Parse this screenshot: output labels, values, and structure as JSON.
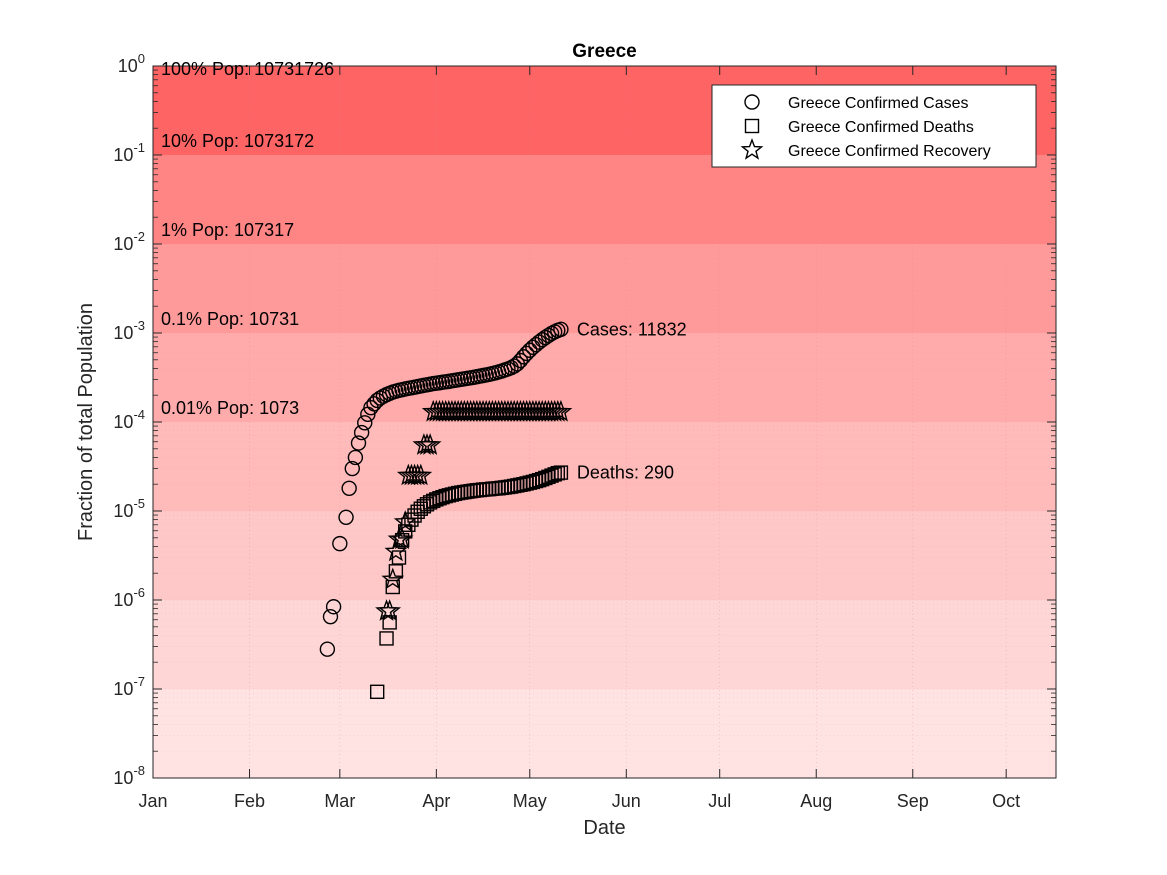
{
  "chart_data": {
    "type": "scatter",
    "title": "Greece",
    "xlabel": "Date",
    "ylabel": "Fraction of total Population",
    "y_scale": "log",
    "ylim": [
      1e-08,
      1
    ],
    "xlim": [
      "2020-01-01",
      "2020-10-17"
    ],
    "grid": true,
    "legend_position": "top-right",
    "population": 10731726,
    "x_ticks": [
      {
        "date": "2020-01-01",
        "label": "Jan"
      },
      {
        "date": "2020-02-01",
        "label": "Feb"
      },
      {
        "date": "2020-03-01",
        "label": "Mar"
      },
      {
        "date": "2020-04-01",
        "label": "Apr"
      },
      {
        "date": "2020-05-01",
        "label": "May"
      },
      {
        "date": "2020-06-01",
        "label": "Jun"
      },
      {
        "date": "2020-07-01",
        "label": "Jul"
      },
      {
        "date": "2020-08-01",
        "label": "Aug"
      },
      {
        "date": "2020-09-01",
        "label": "Sep"
      },
      {
        "date": "2020-10-01",
        "label": "Oct"
      }
    ],
    "y_ticks": [
      {
        "value": 1e-08,
        "base": "10",
        "exp": "-8"
      },
      {
        "value": 1e-07,
        "base": "10",
        "exp": "-7"
      },
      {
        "value": 1e-06,
        "base": "10",
        "exp": "-6"
      },
      {
        "value": 1e-05,
        "base": "10",
        "exp": "-5"
      },
      {
        "value": 0.0001,
        "base": "10",
        "exp": "-4"
      },
      {
        "value": 0.001,
        "base": "10",
        "exp": "-3"
      },
      {
        "value": 0.01,
        "base": "10",
        "exp": "-2"
      },
      {
        "value": 0.1,
        "base": "10",
        "exp": "-1"
      },
      {
        "value": 1,
        "base": "10",
        "exp": "0"
      }
    ],
    "bands": [
      {
        "from": 1e-08,
        "to": 1e-07,
        "color": "#ffe3e3"
      },
      {
        "from": 1e-07,
        "to": 1e-06,
        "color": "#ffd6d6"
      },
      {
        "from": 1e-06,
        "to": 1e-05,
        "color": "#ffc8c8"
      },
      {
        "from": 1e-05,
        "to": 0.0001,
        "color": "#ffbaba"
      },
      {
        "from": 0.0001,
        "to": 0.001,
        "color": "#ffabab"
      },
      {
        "from": 0.001,
        "to": 0.01,
        "color": "#ff9a9a"
      },
      {
        "from": 0.01,
        "to": 0.1,
        "color": "#ff8585"
      },
      {
        "from": 0.1,
        "to": 1,
        "color": "#ff6464"
      }
    ],
    "band_labels": [
      {
        "value": 1,
        "text": "100% Pop: 10731726"
      },
      {
        "value": 0.1,
        "text": "10% Pop: 1073172"
      },
      {
        "value": 0.01,
        "text": "1% Pop: 107317"
      },
      {
        "value": 0.001,
        "text": "0.1% Pop: 10731"
      },
      {
        "value": 0.0001,
        "text": "0.01% Pop: 1073"
      }
    ],
    "series": [
      {
        "name": "Greece Confirmed Cases",
        "marker": "circle",
        "end_label": "Cases: 11832",
        "points": [
          [
            "2020-02-26",
            2.8e-07
          ],
          [
            "2020-02-27",
            6.5e-07
          ],
          [
            "2020-02-28",
            8.4e-07
          ],
          [
            "2020-03-01",
            4.3e-06
          ],
          [
            "2020-03-03",
            8.5e-06
          ],
          [
            "2020-03-04",
            1.8e-05
          ],
          [
            "2020-03-05",
            3e-05
          ],
          [
            "2020-03-06",
            4e-05
          ],
          [
            "2020-03-07",
            5.8e-05
          ],
          [
            "2020-03-08",
            7.6e-05
          ],
          [
            "2020-03-09",
            9.8e-05
          ],
          [
            "2020-03-10",
            0.000122
          ],
          [
            "2020-03-11",
            0.000145
          ],
          [
            "2020-03-12",
            0.00016
          ],
          [
            "2020-03-13",
            0.000175
          ],
          [
            "2020-03-14",
            0.000186
          ],
          [
            "2020-03-15",
            0.000195
          ],
          [
            "2020-03-16",
            0.000203
          ],
          [
            "2020-03-17",
            0.00021
          ],
          [
            "2020-03-18",
            0.000217
          ],
          [
            "2020-03-19",
            0.000222
          ],
          [
            "2020-03-20",
            0.000227
          ],
          [
            "2020-03-21",
            0.000231
          ],
          [
            "2020-03-22",
            0.000235
          ],
          [
            "2020-03-23",
            0.000239
          ],
          [
            "2020-03-24",
            0.000242
          ],
          [
            "2020-03-25",
            0.000246
          ],
          [
            "2020-03-26",
            0.00025
          ],
          [
            "2020-03-27",
            0.000254
          ],
          [
            "2020-03-28",
            0.000258
          ],
          [
            "2020-03-29",
            0.000262
          ],
          [
            "2020-03-30",
            0.000266
          ],
          [
            "2020-03-31",
            0.00027
          ],
          [
            "2020-04-01",
            0.000273
          ],
          [
            "2020-04-02",
            0.000276
          ],
          [
            "2020-04-03",
            0.00028
          ],
          [
            "2020-04-04",
            0.000283
          ],
          [
            "2020-04-05",
            0.000286
          ],
          [
            "2020-04-06",
            0.00029
          ],
          [
            "2020-04-07",
            0.000294
          ],
          [
            "2020-04-08",
            0.000298
          ],
          [
            "2020-04-09",
            0.000302
          ],
          [
            "2020-04-10",
            0.000306
          ],
          [
            "2020-04-11",
            0.00031
          ],
          [
            "2020-04-12",
            0.000314
          ],
          [
            "2020-04-13",
            0.000318
          ],
          [
            "2020-04-14",
            0.000323
          ],
          [
            "2020-04-15",
            0.000328
          ],
          [
            "2020-04-16",
            0.000333
          ],
          [
            "2020-04-17",
            0.000338
          ],
          [
            "2020-04-18",
            0.000343
          ],
          [
            "2020-04-19",
            0.00035
          ],
          [
            "2020-04-20",
            0.000357
          ],
          [
            "2020-04-21",
            0.000365
          ],
          [
            "2020-04-22",
            0.000374
          ],
          [
            "2020-04-23",
            0.000384
          ],
          [
            "2020-04-24",
            0.000395
          ],
          [
            "2020-04-25",
            0.000408
          ],
          [
            "2020-04-26",
            0.000425
          ],
          [
            "2020-04-27",
            0.00045
          ],
          [
            "2020-04-28",
            0.00049
          ],
          [
            "2020-04-29",
            0.00054
          ],
          [
            "2020-04-30",
            0.00059
          ],
          [
            "2020-05-01",
            0.00064
          ],
          [
            "2020-05-02",
            0.00069
          ],
          [
            "2020-05-03",
            0.00074
          ],
          [
            "2020-05-04",
            0.00079
          ],
          [
            "2020-05-05",
            0.00084
          ],
          [
            "2020-05-06",
            0.00089
          ],
          [
            "2020-05-07",
            0.00094
          ],
          [
            "2020-05-08",
            0.00099
          ],
          [
            "2020-05-09",
            0.00103
          ],
          [
            "2020-05-10",
            0.00107
          ],
          [
            "2020-05-11",
            0.0011
          ]
        ]
      },
      {
        "name": "Greece Confirmed Deaths",
        "marker": "square",
        "end_label": "Deaths: 290",
        "points": [
          [
            "2020-03-13",
            9.3e-08
          ],
          [
            "2020-03-16",
            3.7e-07
          ],
          [
            "2020-03-17",
            5.6e-07
          ],
          [
            "2020-03-18",
            1.4e-06
          ],
          [
            "2020-03-19",
            2.1e-06
          ],
          [
            "2020-03-20",
            3e-06
          ],
          [
            "2020-03-21",
            4.7e-06
          ],
          [
            "2020-03-22",
            5.9e-06
          ],
          [
            "2020-03-23",
            7e-06
          ],
          [
            "2020-03-24",
            8e-06
          ],
          [
            "2020-03-25",
            8.9e-06
          ],
          [
            "2020-03-26",
            9.8e-06
          ],
          [
            "2020-03-27",
            1.06e-05
          ],
          [
            "2020-03-28",
            1.13e-05
          ],
          [
            "2020-03-29",
            1.19e-05
          ],
          [
            "2020-03-30",
            1.25e-05
          ],
          [
            "2020-03-31",
            1.3e-05
          ],
          [
            "2020-04-01",
            1.35e-05
          ],
          [
            "2020-04-02",
            1.39e-05
          ],
          [
            "2020-04-03",
            1.43e-05
          ],
          [
            "2020-04-04",
            1.47e-05
          ],
          [
            "2020-04-05",
            1.5e-05
          ],
          [
            "2020-04-06",
            1.53e-05
          ],
          [
            "2020-04-07",
            1.56e-05
          ],
          [
            "2020-04-08",
            1.59e-05
          ],
          [
            "2020-04-09",
            1.61e-05
          ],
          [
            "2020-04-10",
            1.63e-05
          ],
          [
            "2020-04-11",
            1.65e-05
          ],
          [
            "2020-04-12",
            1.67e-05
          ],
          [
            "2020-04-13",
            1.69e-05
          ],
          [
            "2020-04-14",
            1.71e-05
          ],
          [
            "2020-04-15",
            1.72e-05
          ],
          [
            "2020-04-16",
            1.74e-05
          ],
          [
            "2020-04-17",
            1.75e-05
          ],
          [
            "2020-04-18",
            1.76e-05
          ],
          [
            "2020-04-19",
            1.78e-05
          ],
          [
            "2020-04-20",
            1.79e-05
          ],
          [
            "2020-04-21",
            1.8e-05
          ],
          [
            "2020-04-22",
            1.82e-05
          ],
          [
            "2020-04-23",
            1.84e-05
          ],
          [
            "2020-04-24",
            1.86e-05
          ],
          [
            "2020-04-25",
            1.88e-05
          ],
          [
            "2020-04-26",
            1.91e-05
          ],
          [
            "2020-04-27",
            1.94e-05
          ],
          [
            "2020-04-28",
            1.97e-05
          ],
          [
            "2020-04-29",
            2e-05
          ],
          [
            "2020-04-30",
            2.04e-05
          ],
          [
            "2020-05-01",
            2.08e-05
          ],
          [
            "2020-05-02",
            2.12e-05
          ],
          [
            "2020-05-03",
            2.17e-05
          ],
          [
            "2020-05-04",
            2.22e-05
          ],
          [
            "2020-05-05",
            2.28e-05
          ],
          [
            "2020-05-06",
            2.35e-05
          ],
          [
            "2020-05-07",
            2.42e-05
          ],
          [
            "2020-05-08",
            2.5e-05
          ],
          [
            "2020-05-09",
            2.58e-05
          ],
          [
            "2020-05-10",
            2.66e-05
          ],
          [
            "2020-05-11",
            2.7e-05
          ]
        ]
      },
      {
        "name": "Greece Confirmed Recovery",
        "marker": "star",
        "points": [
          [
            "2020-03-16",
            7.5e-07
          ],
          [
            "2020-03-17",
            7.5e-07
          ],
          [
            "2020-03-18",
            1.7e-06
          ],
          [
            "2020-03-19",
            3.5e-06
          ],
          [
            "2020-03-20",
            4.8e-06
          ],
          [
            "2020-03-21",
            4.8e-06
          ],
          [
            "2020-03-22",
            7.5e-06
          ],
          [
            "2020-03-23",
            2.5e-05
          ],
          [
            "2020-03-24",
            2.5e-05
          ],
          [
            "2020-03-25",
            2.5e-05
          ],
          [
            "2020-03-26",
            2.5e-05
          ],
          [
            "2020-03-27",
            2.5e-05
          ],
          [
            "2020-03-28",
            5.5e-05
          ],
          [
            "2020-03-29",
            5.5e-05
          ],
          [
            "2020-03-30",
            5.5e-05
          ],
          [
            "2020-03-31",
            0.00013
          ],
          [
            "2020-04-01",
            0.00013
          ],
          [
            "2020-04-02",
            0.00013
          ],
          [
            "2020-04-03",
            0.00013
          ],
          [
            "2020-04-04",
            0.00013
          ],
          [
            "2020-04-05",
            0.00013
          ],
          [
            "2020-04-06",
            0.00013
          ],
          [
            "2020-04-07",
            0.00013
          ],
          [
            "2020-04-08",
            0.00013
          ],
          [
            "2020-04-09",
            0.00013
          ],
          [
            "2020-04-10",
            0.00013
          ],
          [
            "2020-04-11",
            0.00013
          ],
          [
            "2020-04-12",
            0.00013
          ],
          [
            "2020-04-13",
            0.00013
          ],
          [
            "2020-04-14",
            0.00013
          ],
          [
            "2020-04-15",
            0.00013
          ],
          [
            "2020-04-16",
            0.00013
          ],
          [
            "2020-04-17",
            0.00013
          ],
          [
            "2020-04-18",
            0.00013
          ],
          [
            "2020-04-19",
            0.00013
          ],
          [
            "2020-04-20",
            0.00013
          ],
          [
            "2020-04-21",
            0.00013
          ],
          [
            "2020-04-22",
            0.00013
          ],
          [
            "2020-04-23",
            0.00013
          ],
          [
            "2020-04-24",
            0.00013
          ],
          [
            "2020-04-25",
            0.00013
          ],
          [
            "2020-04-26",
            0.00013
          ],
          [
            "2020-04-27",
            0.00013
          ],
          [
            "2020-04-28",
            0.00013
          ],
          [
            "2020-04-29",
            0.00013
          ],
          [
            "2020-04-30",
            0.00013
          ],
          [
            "2020-05-01",
            0.00013
          ],
          [
            "2020-05-02",
            0.00013
          ],
          [
            "2020-05-03",
            0.00013
          ],
          [
            "2020-05-04",
            0.00013
          ],
          [
            "2020-05-05",
            0.00013
          ],
          [
            "2020-05-06",
            0.00013
          ],
          [
            "2020-05-07",
            0.00013
          ],
          [
            "2020-05-08",
            0.00013
          ],
          [
            "2020-05-09",
            0.00013
          ],
          [
            "2020-05-10",
            0.00013
          ],
          [
            "2020-05-11",
            0.00013
          ]
        ]
      }
    ]
  }
}
